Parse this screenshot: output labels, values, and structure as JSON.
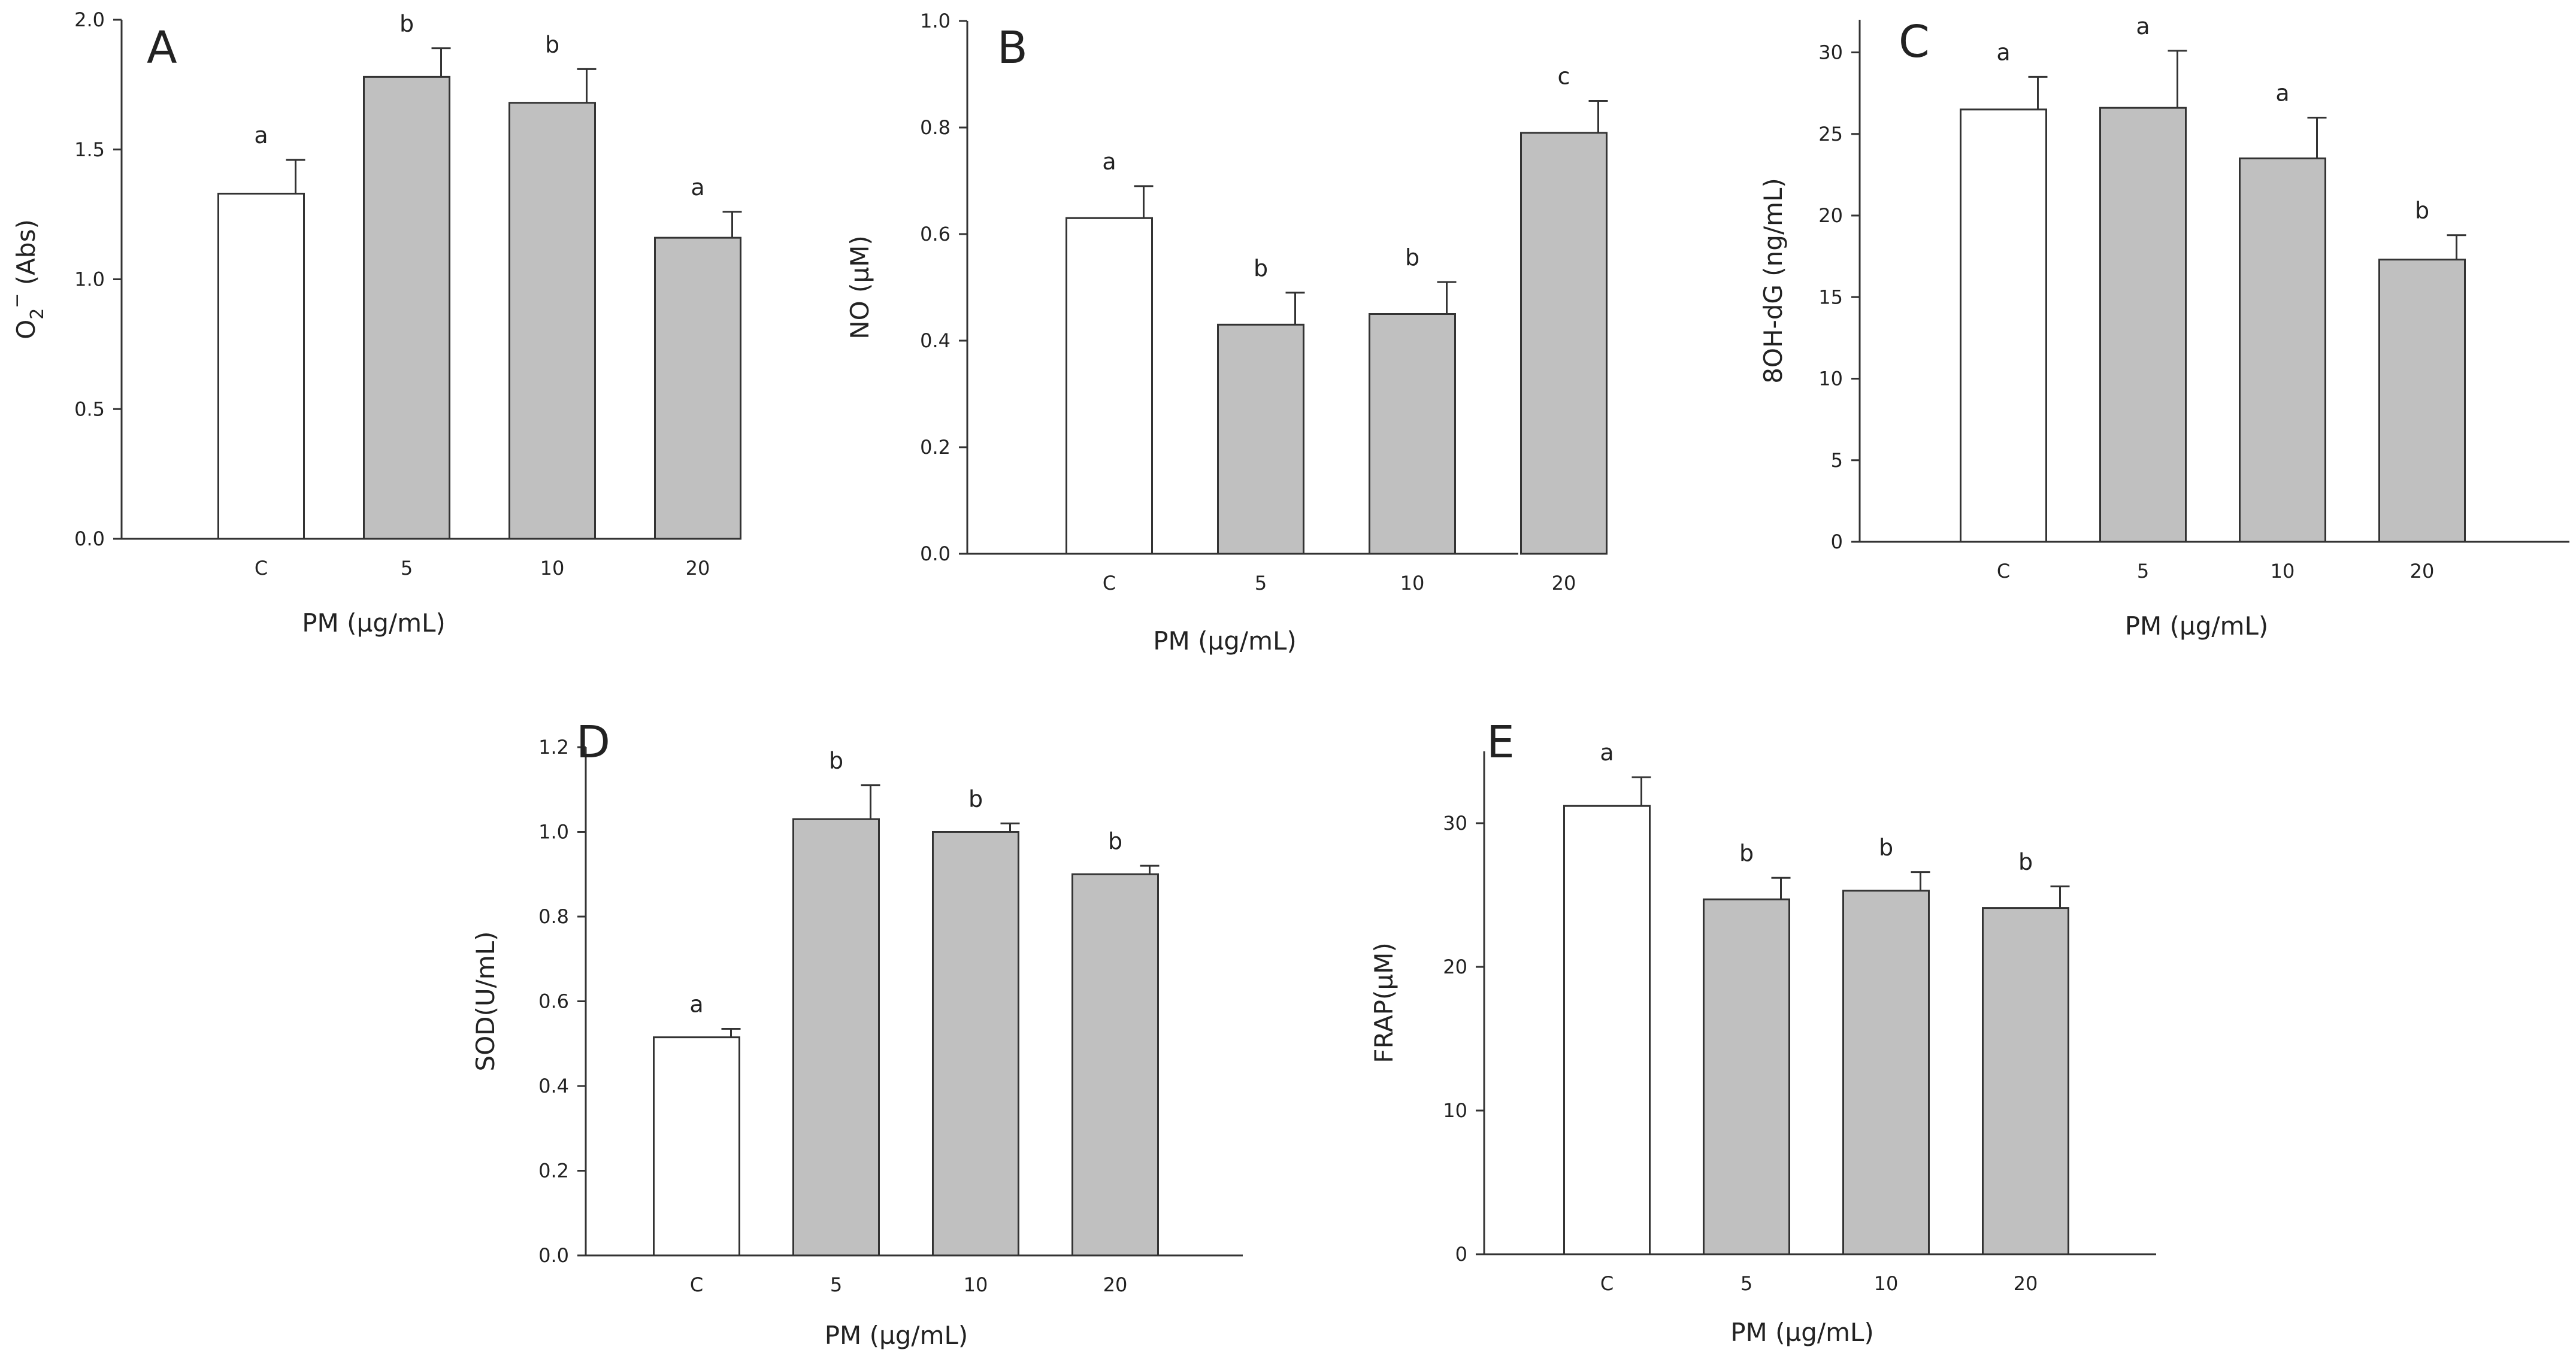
{
  "chart_data": [
    {
      "type": "bar",
      "panel": "A",
      "categories": [
        "C",
        "5",
        "10",
        "20"
      ],
      "values": [
        1.33,
        1.78,
        1.68,
        1.16
      ],
      "errors": [
        0.13,
        0.11,
        0.13,
        0.1
      ],
      "sig_labels": [
        "a",
        "b",
        "b",
        "a"
      ],
      "ylabel_main": "O",
      "ylabel_sub": "2",
      "ylabel_sup": "−",
      "ylabel_rest": " (Abs)",
      "xlabel": "PM (µg/mL)",
      "ylim": [
        0,
        2.0
      ],
      "yticks": [
        "0.0",
        "0.5",
        "1.0",
        "1.5",
        "2.0"
      ],
      "colors": [
        "#ffffff",
        "#c0c0c0",
        "#c0c0c0",
        "#c0c0c0"
      ]
    },
    {
      "type": "bar",
      "panel": "B",
      "categories": [
        "C",
        "5",
        "10",
        "20"
      ],
      "values": [
        0.63,
        0.43,
        0.45,
        0.79
      ],
      "errors": [
        0.06,
        0.06,
        0.06,
        0.06
      ],
      "sig_labels": [
        "a",
        "b",
        "b",
        "c"
      ],
      "ylabel": "NO (µM)",
      "xlabel": "PM (µg/mL)",
      "ylim": [
        0,
        1.0
      ],
      "yticks": [
        "0.0",
        "0.2",
        "0.4",
        "0.6",
        "0.8",
        "1.0"
      ],
      "colors": [
        "#ffffff",
        "#c0c0c0",
        "#c0c0c0",
        "#c0c0c0"
      ]
    },
    {
      "type": "bar",
      "panel": "C",
      "categories": [
        "C",
        "5",
        "10",
        "20"
      ],
      "values": [
        26.5,
        26.6,
        23.5,
        17.3
      ],
      "errors": [
        2.0,
        3.5,
        2.5,
        1.5
      ],
      "sig_labels": [
        "a",
        "a",
        "a",
        "b"
      ],
      "ylabel": "8OH-dG (ng/mL)",
      "xlabel": "PM (µg/mL)",
      "ylim": [
        0,
        32
      ],
      "yticks": [
        "0",
        "5",
        "10",
        "15",
        "20",
        "25",
        "30"
      ],
      "colors": [
        "#ffffff",
        "#c0c0c0",
        "#c0c0c0",
        "#c0c0c0"
      ]
    },
    {
      "type": "bar",
      "panel": "D",
      "categories": [
        "C",
        "5",
        "10",
        "20"
      ],
      "values": [
        0.515,
        1.03,
        1.0,
        0.9
      ],
      "errors": [
        0.02,
        0.08,
        0.02,
        0.02
      ],
      "sig_labels": [
        "a",
        "b",
        "b",
        "b"
      ],
      "ylabel": "SOD(U/mL)",
      "xlabel": "PM (µg/mL)",
      "ylim": [
        0,
        1.2
      ],
      "yticks": [
        "0.0",
        "0.2",
        "0.4",
        "0.6",
        "0.8",
        "1.0",
        "1.2"
      ],
      "colors": [
        "#ffffff",
        "#c0c0c0",
        "#c0c0c0",
        "#c0c0c0"
      ]
    },
    {
      "type": "bar",
      "panel": "E",
      "categories": [
        "C",
        "5",
        "10",
        "20"
      ],
      "values": [
        31.2,
        24.7,
        25.3,
        24.1
      ],
      "errors": [
        2.0,
        1.5,
        1.3,
        1.5
      ],
      "sig_labels": [
        "a",
        "b",
        "b",
        "b"
      ],
      "ylabel": "FRAP(µM)",
      "xlabel": "PM (µg/mL)",
      "ylim": [
        0,
        35
      ],
      "yticks": [
        "0",
        "10",
        "20",
        "30"
      ],
      "colors": [
        "#ffffff",
        "#c0c0c0",
        "#c0c0c0",
        "#c0c0c0"
      ]
    }
  ]
}
